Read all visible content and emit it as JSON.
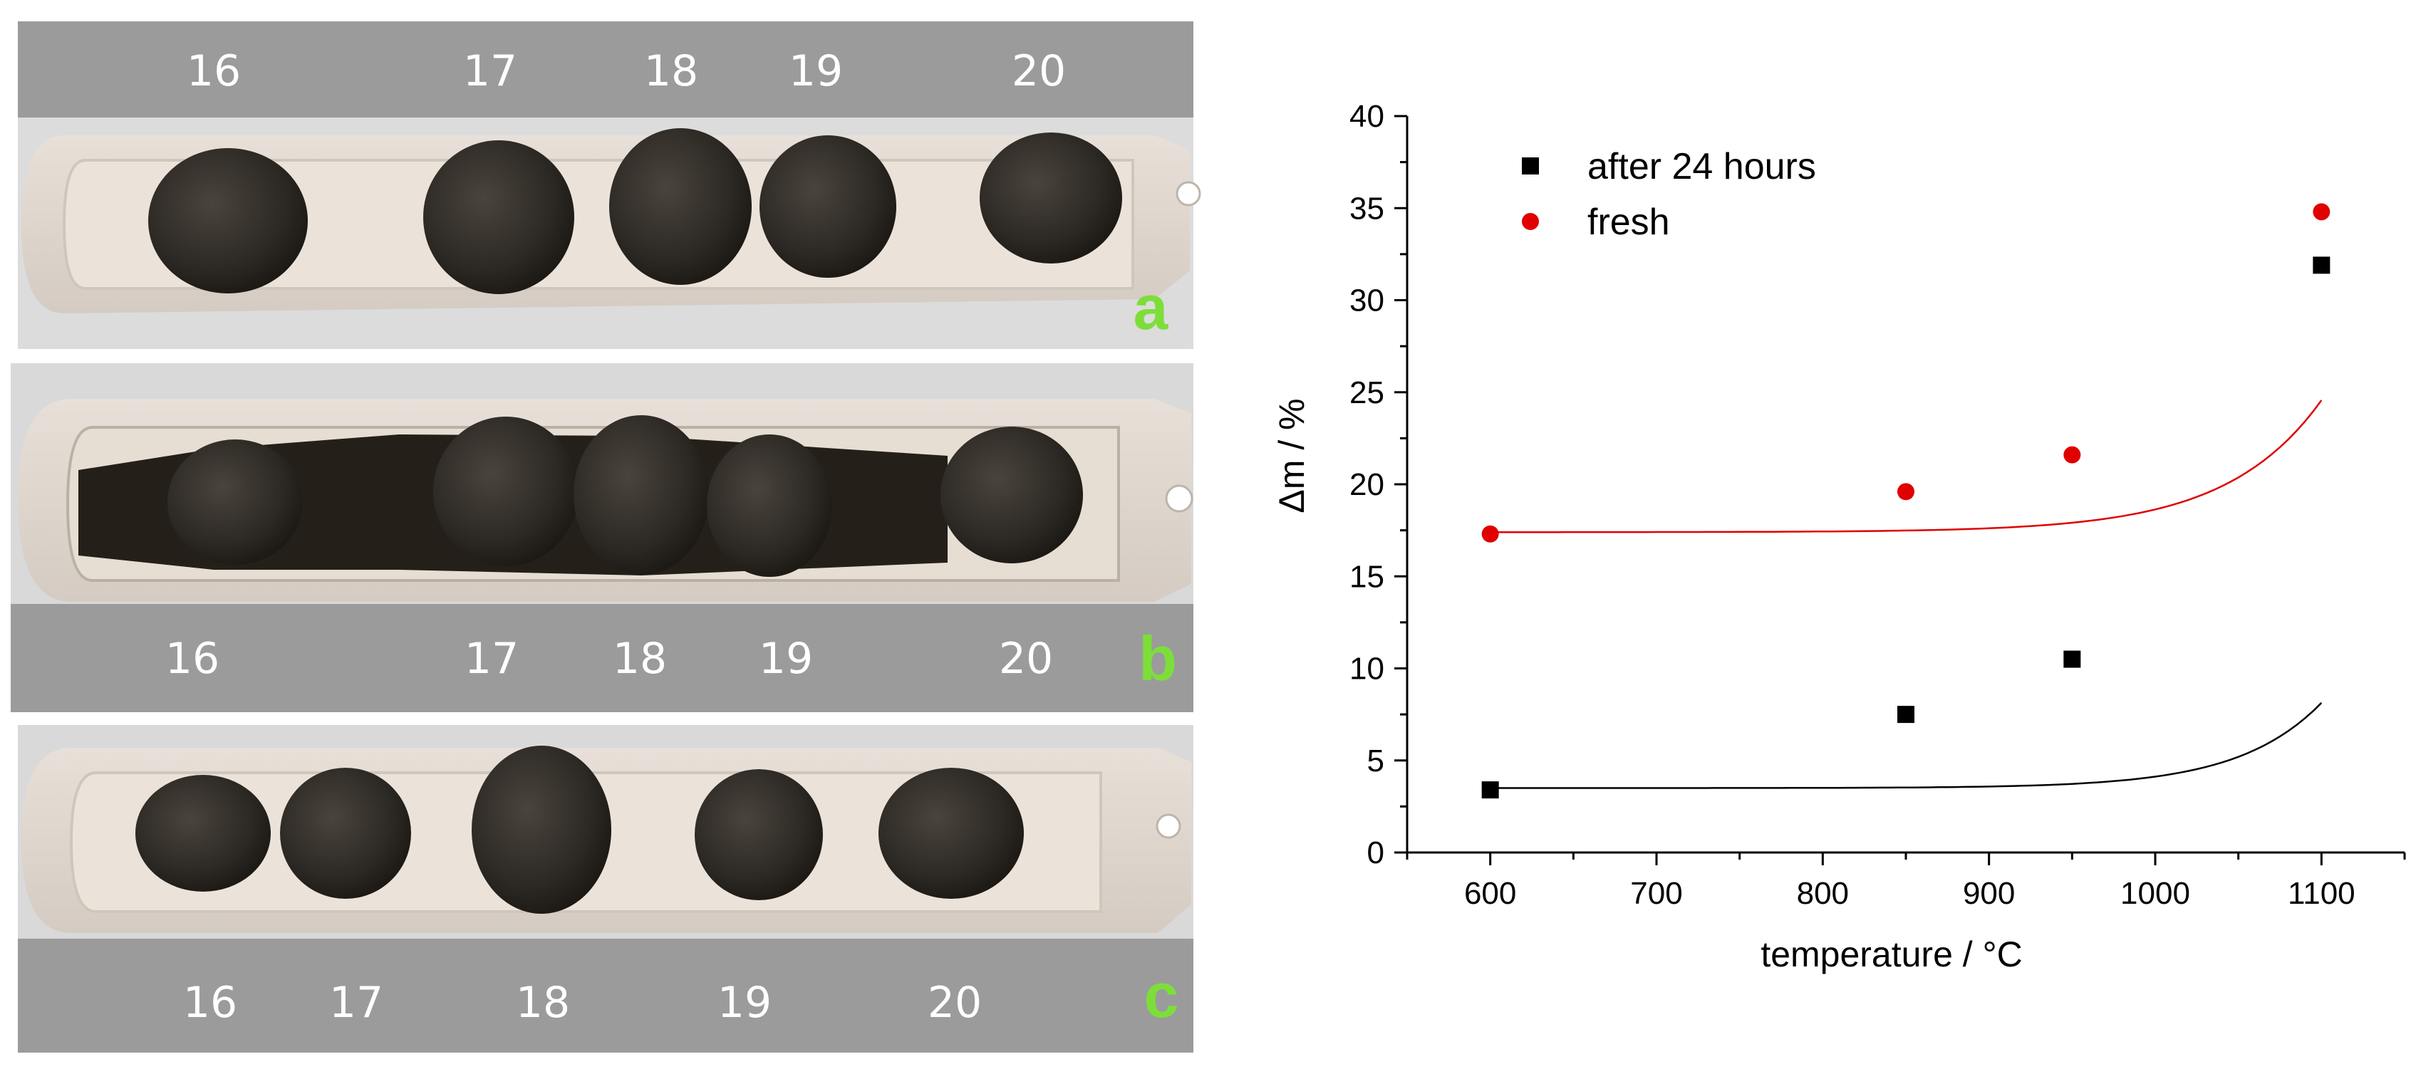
{
  "photos": {
    "a": {
      "letter": "a",
      "labels": [
        "16",
        "17",
        "18",
        "19",
        "20"
      ]
    },
    "b": {
      "letter": "b",
      "labels": [
        "16",
        "17",
        "18",
        "19",
        "20"
      ]
    },
    "c": {
      "letter": "c",
      "labels": [
        "16",
        "17",
        "18",
        "19",
        "20"
      ]
    }
  },
  "chart_data": {
    "type": "scatter",
    "xlabel": "temperature / °C",
    "ylabel": "Δm / %",
    "xlim": [
      550,
      1150
    ],
    "ylim": [
      0,
      40
    ],
    "x_ticks": [
      600,
      700,
      800,
      900,
      1000,
      1100
    ],
    "y_ticks": [
      0,
      5,
      10,
      15,
      20,
      25,
      30,
      35,
      40
    ],
    "grid": false,
    "legend_position": "top-left",
    "series": [
      {
        "name": "after 24 hours",
        "marker": "square",
        "color": "#000000",
        "x": [
          600,
          850,
          950,
          1100
        ],
        "y": [
          3.4,
          7.5,
          10.5,
          31.9
        ],
        "fit": {
          "type": "exponential",
          "a": 3.5,
          "b": 0.0002,
          "c": 0.0201
        }
      },
      {
        "name": "fresh",
        "marker": "circle",
        "color": "#e00000",
        "x": [
          600,
          850,
          950,
          1100
        ],
        "y": [
          17.3,
          19.6,
          21.6,
          34.8
        ],
        "fit": {
          "type": "exponential",
          "a": 17.4,
          "b": 0.00108,
          "c": 0.0176
        }
      }
    ]
  }
}
